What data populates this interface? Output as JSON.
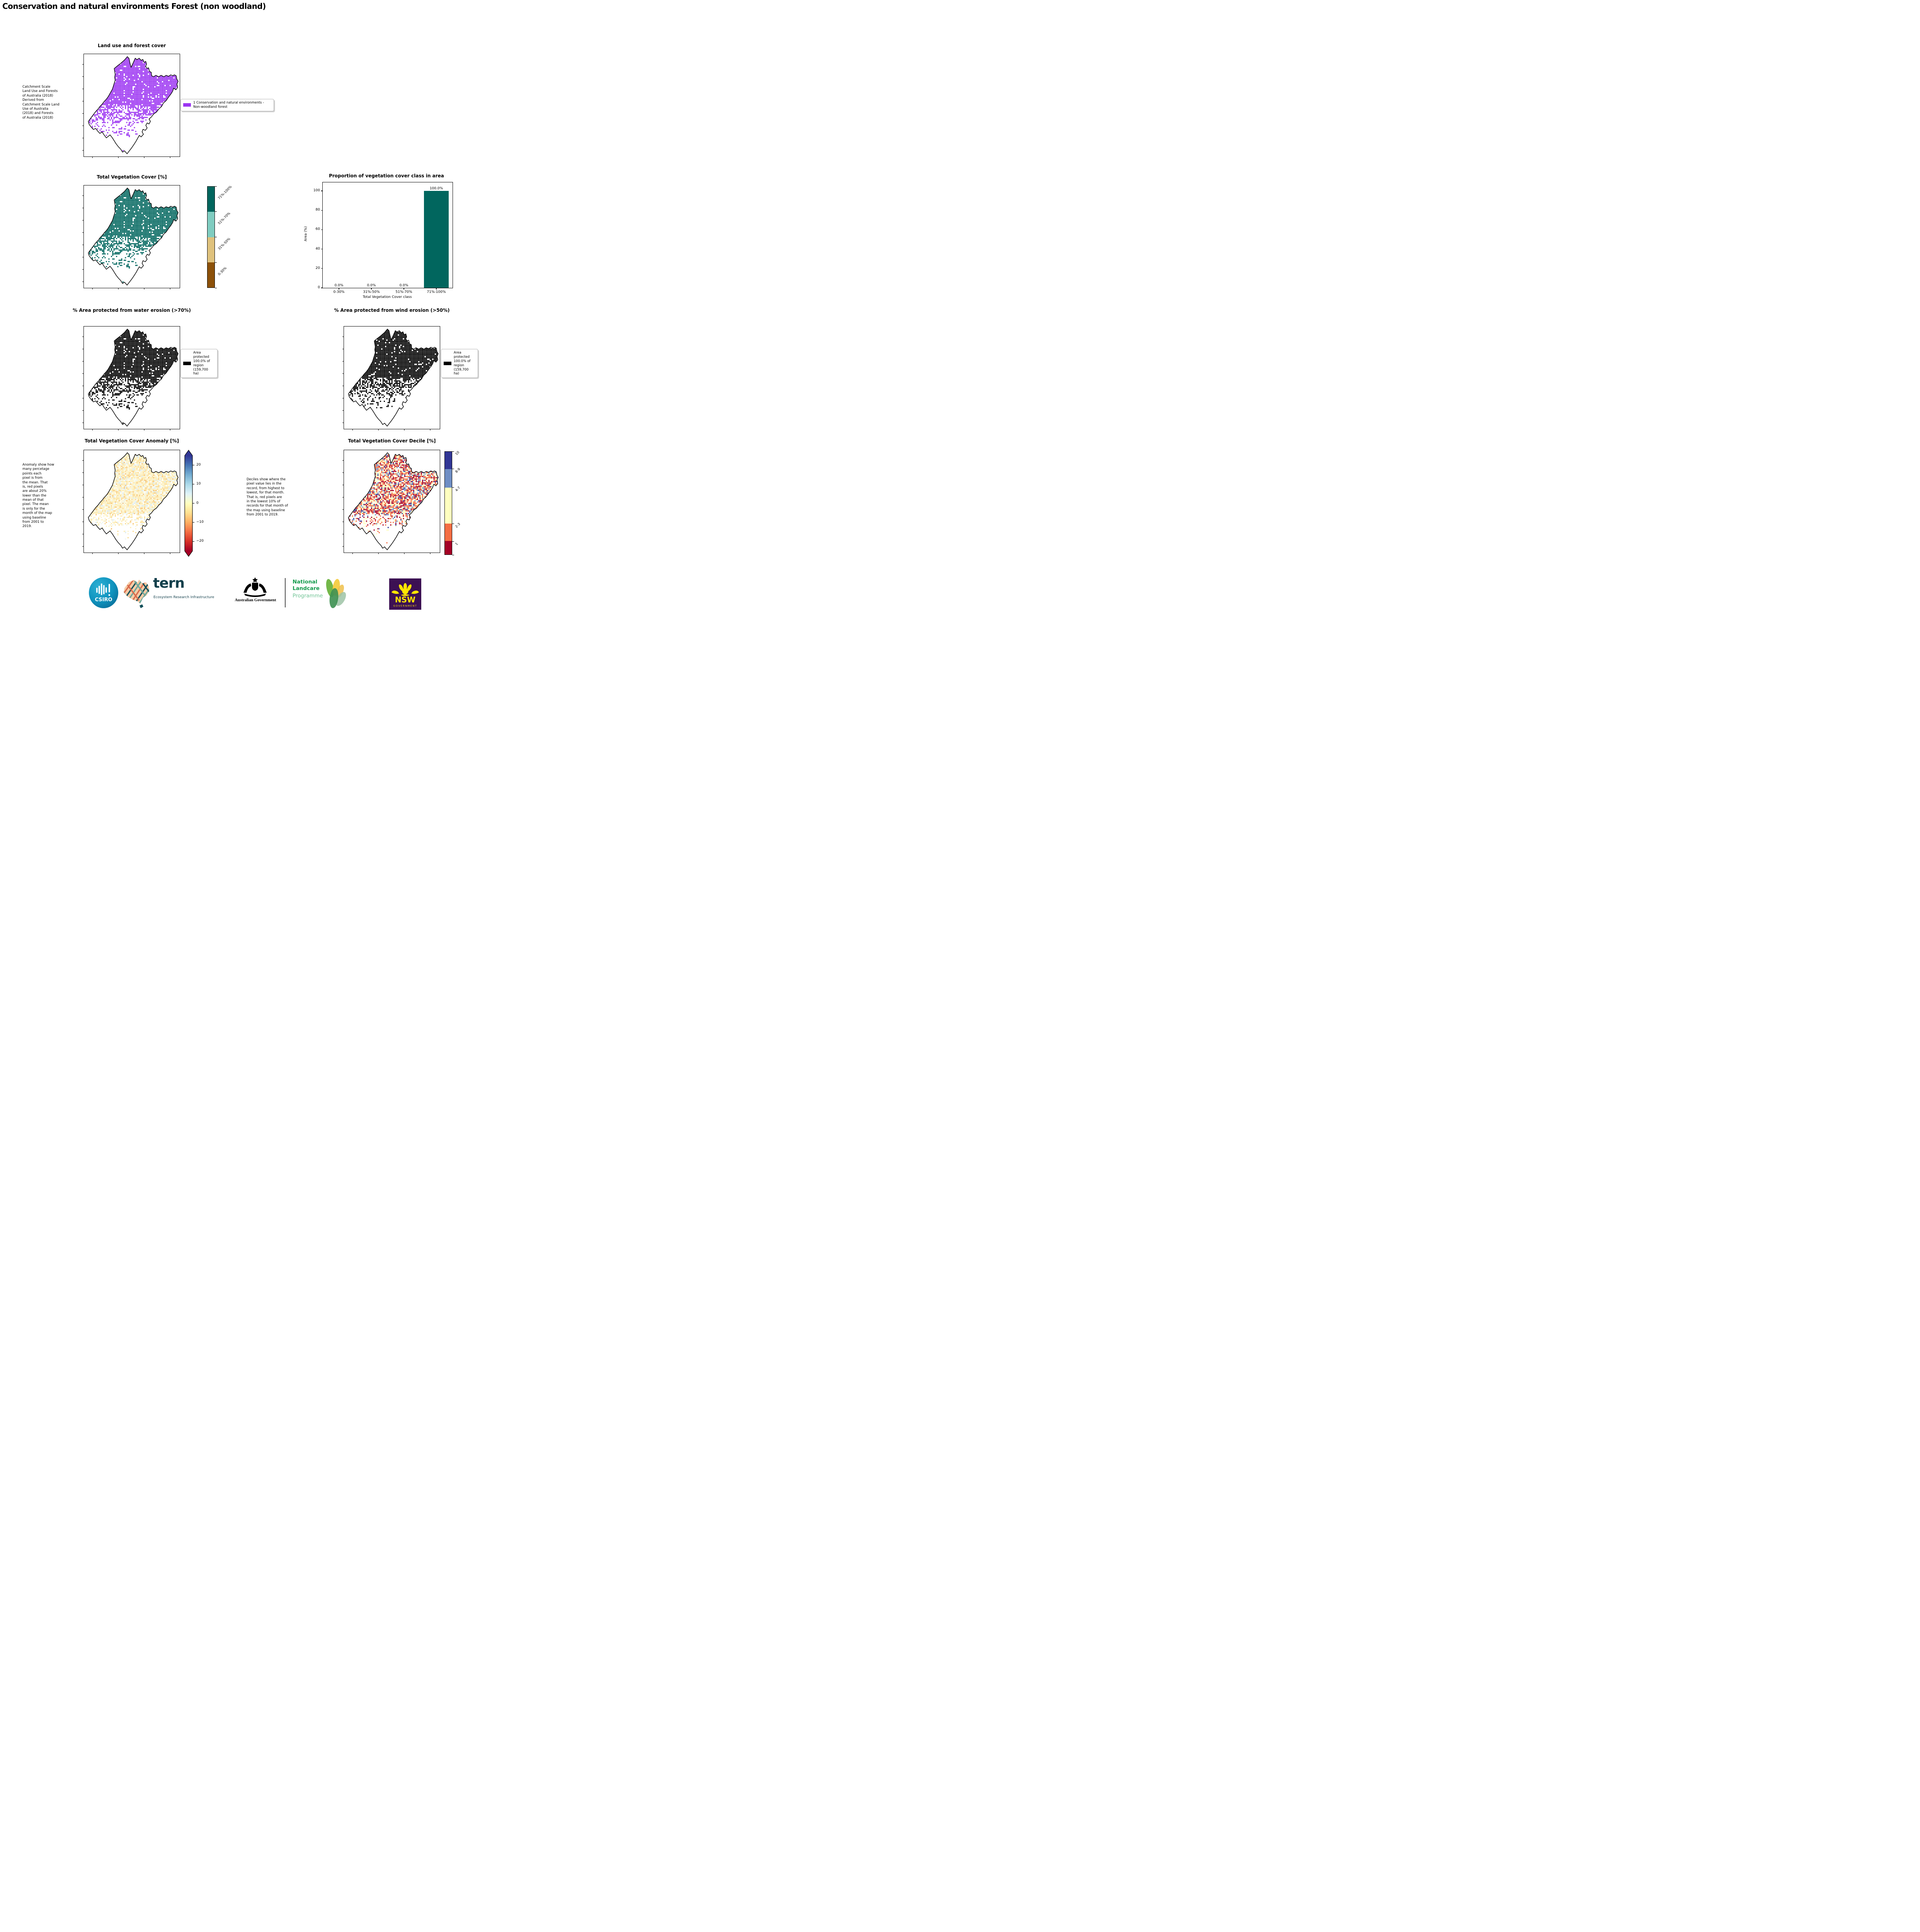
{
  "page": {
    "title": "Conservation and natural environments Forest (non woodland)"
  },
  "panels": {
    "landuse": {
      "title": "Land use and forest cover",
      "caption": " Catchment Scale\nLand Use and Forests\nof Australia (2018)\nDerived from\nCatchment Scale Land\nUse of Australia\n(2018) and Forests\nof Australia (2018)",
      "legend_label": "1 Conservation and natural environments - Non-woodland forest",
      "pixel_color": "#9c35f2"
    },
    "tvc": {
      "title": "Total Vegetation Cover [%]",
      "pixel_color": "#01665e",
      "classes": [
        {
          "label": "71%-100%",
          "color": "#01665e"
        },
        {
          "label": "51%-70%",
          "color": "#80cdc1"
        },
        {
          "label": "31%-50%",
          "color": "#dfc27d"
        },
        {
          "label": "0-30%",
          "color": "#8c510a"
        }
      ]
    },
    "water": {
      "title": "% Area protected from water erosion (>70%)",
      "legend_label": "Area\nprotected\n100.0% of\nregion\n(159,700\nha)",
      "pixel_color": "#000000"
    },
    "wind": {
      "title": "% Area protected from wind erosion (>50%)",
      "legend_label": "Area\nprotected\n100.0% of\nregion\n(159,700\nha)",
      "pixel_color": "#000000"
    },
    "anomaly": {
      "title": "Total Vegetation Cover Anomaly [%]",
      "caption": "Anomaly show how\nmany percetage\npoints each\npixel is from\nthe mean. That\nis, red pixels\nare about 20%\nlower than the\nmean of that\npixel. The mean\nis only for the\nmonth of the map\nusing baseline\nfrom 2001 to\n2019.",
      "colorbar_ticks": [
        "20",
        "10",
        "0",
        "−10",
        "−20"
      ],
      "gradient_stops": [
        "#313695",
        "#4575b4",
        "#74add1",
        "#abd9e9",
        "#e0f3f8",
        "#ffffbf",
        "#fee090",
        "#fdae61",
        "#f46d43",
        "#d73027",
        "#a50026"
      ]
    },
    "decile": {
      "title": "Total Vegetation Cover Decile [%]",
      "caption": "Deciles show where the\npixel value lies in the\nrecord, from highest to\nlowest, for that month.\nThat is, red pixels are\nin the lowest 10% of\nrecords for that month of\nthe map using baseline\nfrom 2001 to 2019.",
      "classes": [
        {
          "label": "10",
          "color": "#313695",
          "h": 17
        },
        {
          "label": "8-9",
          "color": "#6f8ec4",
          "h": 18
        },
        {
          "label": "4-7",
          "color": "#ffffbf",
          "h": 35
        },
        {
          "label": "2-3",
          "color": "#f46d43",
          "h": 17
        },
        {
          "label": "1",
          "color": "#a50026",
          "h": 13
        }
      ]
    }
  },
  "chart_data": {
    "type": "bar",
    "title": "Proportion of vegetation cover class in area",
    "categories": [
      "0-30%",
      "31%-50%",
      "51%-70%",
      "71%-100%"
    ],
    "values": [
      0.0,
      0.0,
      0.0,
      100.0
    ],
    "bar_labels": [
      "0.0%",
      "0.0%",
      "0.0%",
      "100.0%"
    ],
    "xlabel": "Total Vegetation Cover class",
    "ylabel": "Area (%)",
    "ylim": [
      0,
      100
    ],
    "yticks": [
      0,
      20,
      40,
      60,
      80,
      100
    ],
    "bar_color": "#01665e",
    "grid": false,
    "legend_position": "none"
  },
  "map_shape": {
    "boundary": [
      [
        0.31,
        0.13
      ],
      [
        0.345,
        0.103
      ],
      [
        0.38,
        0.078
      ],
      [
        0.42,
        0.045
      ],
      [
        0.452,
        0.01
      ],
      [
        0.47,
        0.028
      ],
      [
        0.48,
        0.075
      ],
      [
        0.492,
        0.118
      ],
      [
        0.508,
        0.088
      ],
      [
        0.522,
        0.058
      ],
      [
        0.537,
        0.026
      ],
      [
        0.556,
        0.04
      ],
      [
        0.58,
        0.026
      ],
      [
        0.601,
        0.048
      ],
      [
        0.619,
        0.038
      ],
      [
        0.633,
        0.068
      ],
      [
        0.651,
        0.058
      ],
      [
        0.659,
        0.088
      ],
      [
        0.649,
        0.108
      ],
      [
        0.663,
        0.128
      ],
      [
        0.681,
        0.122
      ],
      [
        0.691,
        0.158
      ],
      [
        0.71,
        0.168
      ],
      [
        0.713,
        0.202
      ],
      [
        0.736,
        0.212
      ],
      [
        0.76,
        0.198
      ],
      [
        0.79,
        0.213
      ],
      [
        0.816,
        0.198
      ],
      [
        0.846,
        0.213
      ],
      [
        0.871,
        0.198
      ],
      [
        0.896,
        0.208
      ],
      [
        0.921,
        0.193
      ],
      [
        0.941,
        0.203
      ],
      [
        0.959,
        0.193
      ],
      [
        0.979,
        0.203
      ],
      [
        0.986,
        0.238
      ],
      [
        1.0,
        0.258
      ],
      [
        0.986,
        0.288
      ],
      [
        0.996,
        0.318
      ],
      [
        0.976,
        0.343
      ],
      [
        0.951,
        0.328
      ],
      [
        0.941,
        0.358
      ],
      [
        0.921,
        0.388
      ],
      [
        0.896,
        0.418
      ],
      [
        0.871,
        0.452
      ],
      [
        0.841,
        0.478
      ],
      [
        0.821,
        0.512
      ],
      [
        0.791,
        0.538
      ],
      [
        0.766,
        0.568
      ],
      [
        0.736,
        0.588
      ],
      [
        0.711,
        0.618
      ],
      [
        0.686,
        0.638
      ],
      [
        0.701,
        0.662
      ],
      [
        0.686,
        0.688
      ],
      [
        0.666,
        0.678
      ],
      [
        0.651,
        0.702
      ],
      [
        0.666,
        0.728
      ],
      [
        0.646,
        0.752
      ],
      [
        0.621,
        0.742
      ],
      [
        0.611,
        0.768
      ],
      [
        0.626,
        0.792
      ],
      [
        0.601,
        0.818
      ],
      [
        0.581,
        0.803
      ],
      [
        0.566,
        0.828
      ],
      [
        0.546,
        0.862
      ],
      [
        0.521,
        0.898
      ],
      [
        0.496,
        0.932
      ],
      [
        0.471,
        0.962
      ],
      [
        0.449,
        0.988
      ],
      [
        0.421,
        0.958
      ],
      [
        0.401,
        0.972
      ],
      [
        0.381,
        0.942
      ],
      [
        0.356,
        0.918
      ],
      [
        0.331,
        0.888
      ],
      [
        0.311,
        0.858
      ],
      [
        0.291,
        0.828
      ],
      [
        0.266,
        0.798
      ],
      [
        0.246,
        0.813
      ],
      [
        0.226,
        0.828
      ],
      [
        0.201,
        0.798
      ],
      [
        0.181,
        0.768
      ],
      [
        0.156,
        0.783
      ],
      [
        0.131,
        0.758
      ],
      [
        0.111,
        0.733
      ],
      [
        0.086,
        0.743
      ],
      [
        0.061,
        0.718
      ],
      [
        0.041,
        0.693
      ],
      [
        0.031,
        0.663
      ],
      [
        0.051,
        0.638
      ],
      [
        0.071,
        0.613
      ],
      [
        0.091,
        0.588
      ],
      [
        0.111,
        0.563
      ],
      [
        0.136,
        0.538
      ],
      [
        0.156,
        0.513
      ],
      [
        0.181,
        0.488
      ],
      [
        0.201,
        0.463
      ],
      [
        0.226,
        0.438
      ],
      [
        0.246,
        0.413
      ],
      [
        0.261,
        0.388
      ],
      [
        0.276,
        0.363
      ],
      [
        0.291,
        0.338
      ],
      [
        0.301,
        0.308
      ],
      [
        0.311,
        0.278
      ],
      [
        0.321,
        0.248
      ],
      [
        0.316,
        0.218
      ],
      [
        0.321,
        0.188
      ],
      [
        0.316,
        0.158
      ]
    ]
  },
  "maps": {
    "landuse": {
      "seed": 101,
      "density": "veg",
      "palette": [
        [
          "#9c35f2",
          1
        ]
      ]
    },
    "tvc": {
      "seed": 101,
      "density": "veg",
      "palette": [
        [
          "#01665e",
          1
        ]
      ]
    },
    "water": {
      "seed": 101,
      "density": "veg",
      "palette": [
        [
          "#000000",
          1
        ]
      ]
    },
    "wind": {
      "seed": 102,
      "density": "veg",
      "palette": [
        [
          "#000000",
          1
        ]
      ]
    },
    "anomaly": {
      "seed": 301,
      "density": "anom",
      "palette": [
        [
          "#fdf2c4",
          0.36
        ],
        [
          "#fce9ab",
          0.22
        ],
        [
          "#fad98e",
          0.13
        ],
        [
          "#f6c272",
          0.06
        ],
        [
          "#eef5ef",
          0.1
        ],
        [
          "#d9eaf3",
          0.07
        ],
        [
          "#fdfbe8",
          0.06
        ]
      ]
    },
    "decile": {
      "seed": 401,
      "density": "dec",
      "palette": [
        [
          "#a50026",
          0.2
        ],
        [
          "#f46d43",
          0.33
        ],
        [
          "#ffffbf",
          0.28
        ],
        [
          "#6f8ec4",
          0.13
        ],
        [
          "#313695",
          0.06
        ]
      ]
    }
  },
  "footer": {
    "csiro": "CSIRO",
    "tern": "tern",
    "tern_sub": "Ecosystem Research Infrastructure",
    "ausgov": "Australian Government",
    "landcare_line1": "National",
    "landcare_line2": "Landcare",
    "landcare_line3": "Programme",
    "nsw": "NSW",
    "nsw_sub": "GOVERNMENT"
  }
}
